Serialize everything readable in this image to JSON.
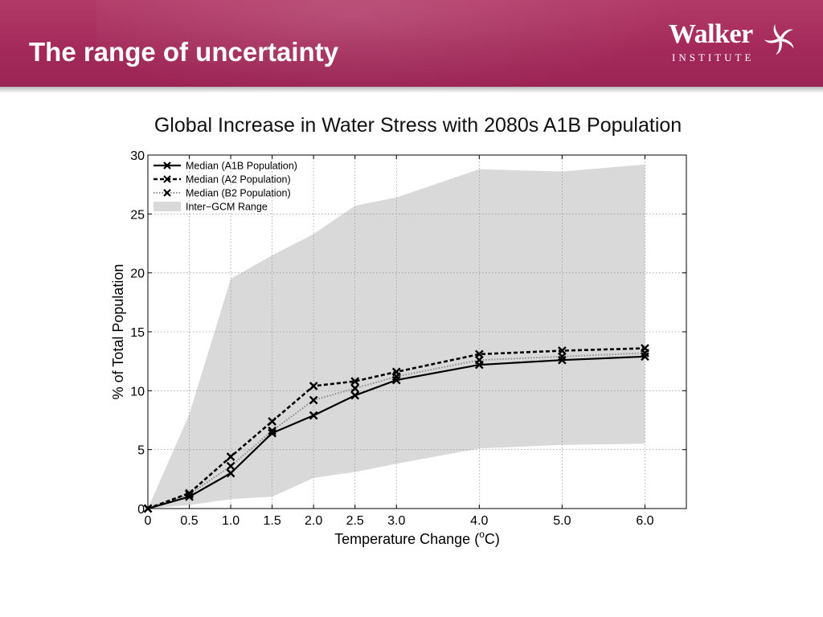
{
  "slide": {
    "title": "The range of uncertainty",
    "logo": {
      "name": "Walker",
      "subtitle": "INSTITUTE"
    }
  },
  "colors": {
    "banner": "#a32a5a",
    "range_fill": "#d9d9d9",
    "line": "#000000"
  },
  "chart_data": {
    "type": "line",
    "title": "Global Increase in Water Stress with 2080s A1B Population",
    "xlabel": "Temperature Change (",
    "xlabel_sup": "o",
    "xlabel_end": "C)",
    "ylabel": "% of Total Population",
    "xlim": [
      0,
      6.5
    ],
    "ylim": [
      0,
      30
    ],
    "grid": true,
    "legend_position": "top-left",
    "x": [
      0,
      0.5,
      1.0,
      1.5,
      2.0,
      2.5,
      3.0,
      4.0,
      5.0,
      6.0
    ],
    "x_ticks": [
      "0",
      "0.5",
      "1.0",
      "1.5",
      "2.0",
      "2.5",
      "3.0",
      "4.0",
      "5.0",
      "6.0"
    ],
    "y_ticks": [
      "0",
      "5",
      "10",
      "15",
      "20",
      "25",
      "30"
    ],
    "series": [
      {
        "name": "Median (A1B Population)",
        "style": "solid",
        "values": [
          0,
          1.0,
          3.0,
          6.4,
          7.9,
          9.6,
          10.9,
          12.2,
          12.6,
          12.9
        ]
      },
      {
        "name": "Median (A2 Population)",
        "style": "dashed",
        "values": [
          0,
          1.3,
          4.4,
          7.4,
          10.4,
          10.8,
          11.6,
          13.1,
          13.4,
          13.6
        ]
      },
      {
        "name": "Median (B2 Population)",
        "style": "dotted",
        "values": [
          0,
          1.2,
          3.6,
          6.6,
          9.2,
          10.2,
          11.2,
          12.6,
          12.9,
          13.2
        ]
      }
    ],
    "range": {
      "name": "Inter−GCM Range",
      "upper": [
        0,
        8.0,
        19.5,
        21.5,
        23.3,
        25.7,
        26.4,
        28.8,
        28.6,
        29.2
      ],
      "lower": [
        0,
        0.3,
        0.8,
        1.0,
        2.6,
        3.1,
        3.8,
        5.1,
        5.4,
        5.5
      ]
    }
  }
}
